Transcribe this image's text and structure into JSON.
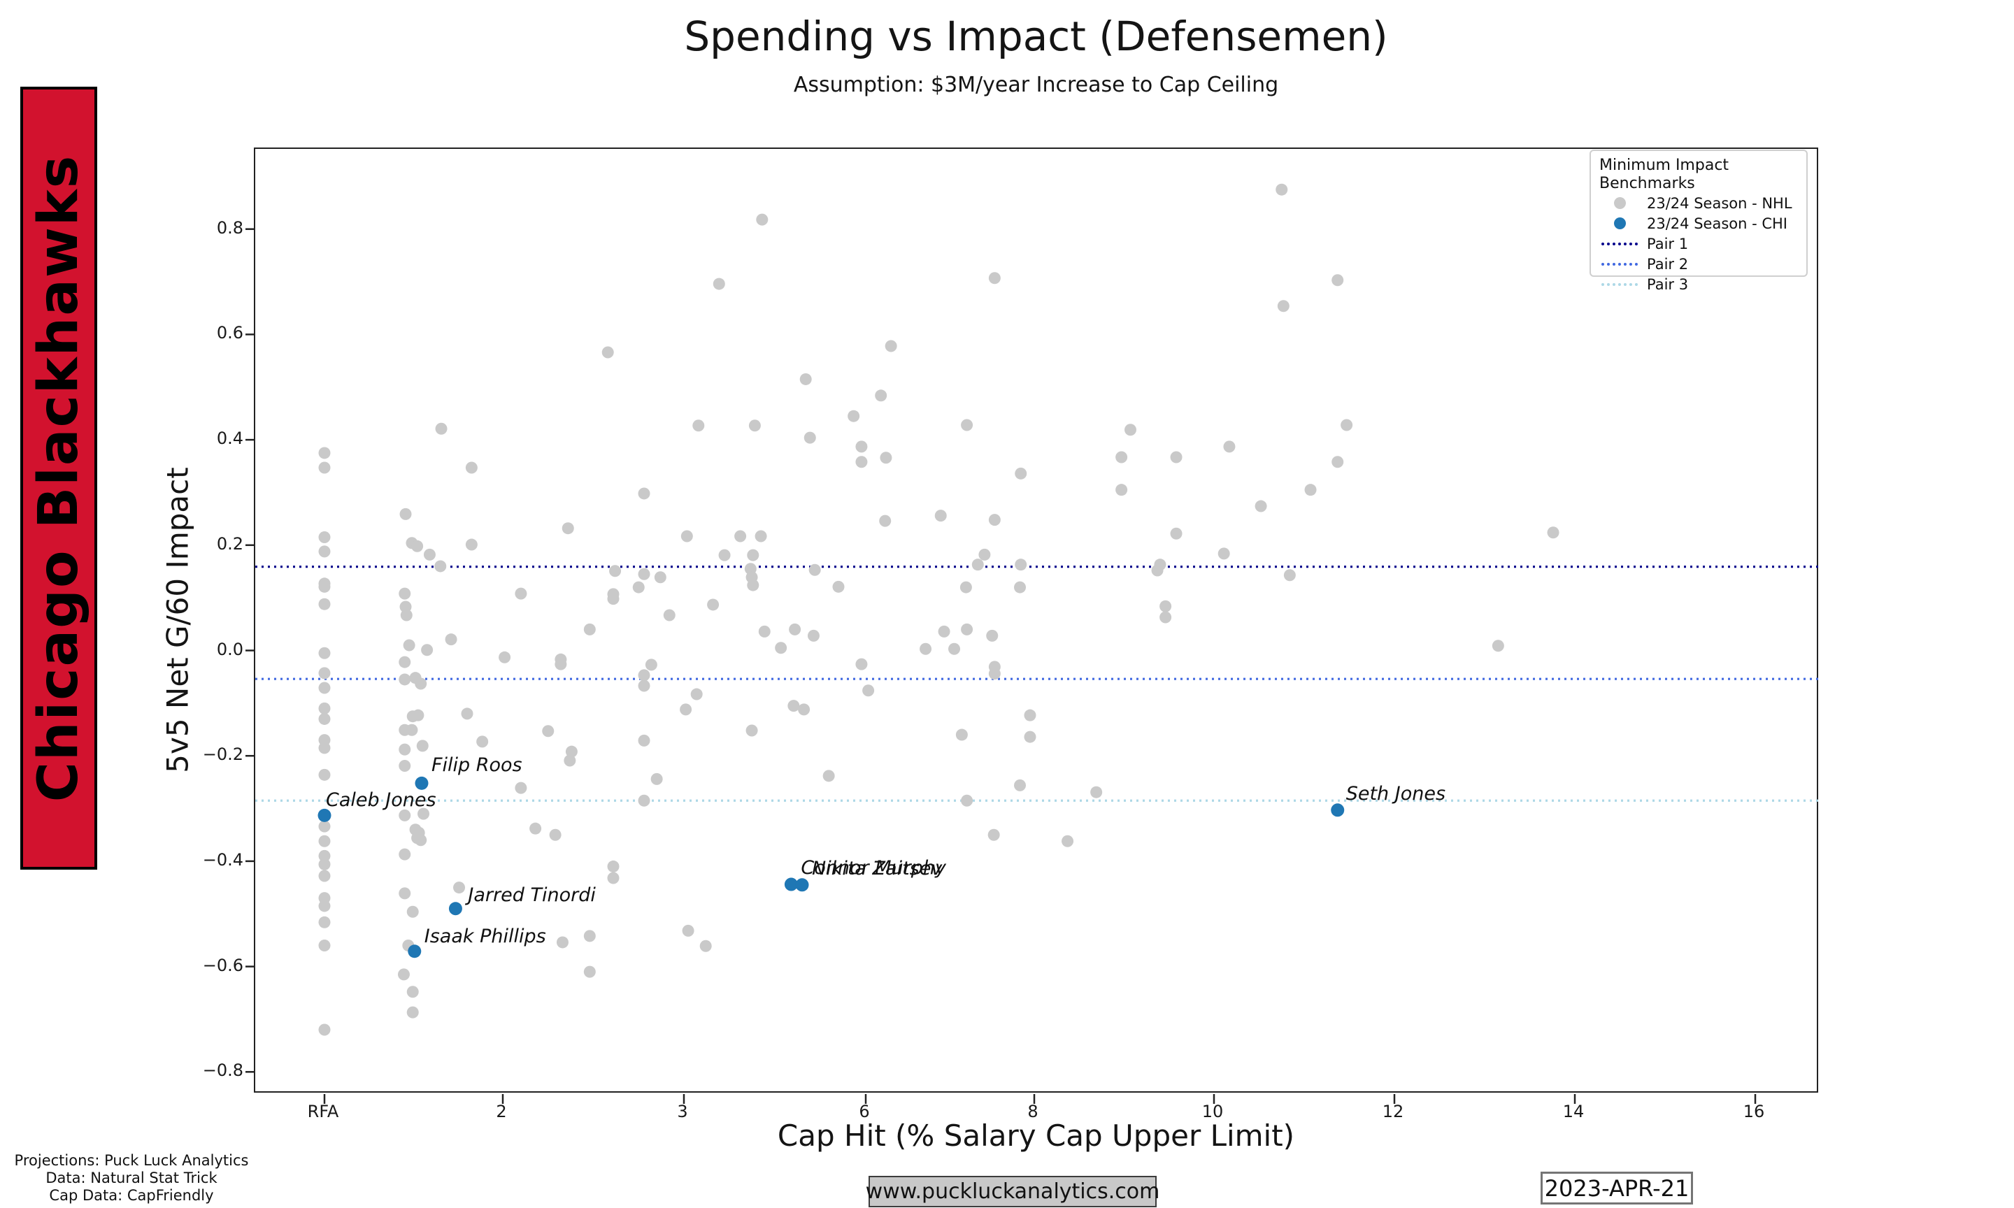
{
  "banner": {
    "team": "Chicago Blackhawks",
    "bg_color": "#D2122E"
  },
  "header": {
    "title": "Spending vs Impact (Defensemen)",
    "subtitle": "Assumption: $3M/year Increase to Cap Ceiling"
  },
  "footer": {
    "credits": [
      "Projections: Puck Luck Analytics",
      "Data: Natural Stat Trick",
      "Cap Data: CapFriendly"
    ],
    "website": "www.puckluckanalytics.com",
    "date": "2023-APR-21"
  },
  "chart_data": {
    "type": "scatter",
    "title": "Spending vs Impact (Defensemen)",
    "subtitle": "Assumption: $3M/year Increase to Cap Ceiling",
    "xlabel": "Cap Hit (% Salary Cap Upper Limit)",
    "ylabel": "5v5 Net G/60 Impact",
    "legend_title": "Minimum Impact Benchmarks",
    "legend_position": "upper right",
    "grid": false,
    "x_tick_labels": [
      "RFA",
      "2",
      "3",
      "6",
      "8",
      "10",
      "12",
      "14",
      "16"
    ],
    "x_tick_values": [
      0,
      2,
      3,
      6,
      8,
      10,
      12,
      14,
      16
    ],
    "y_ticks": [
      0.8,
      0.6,
      0.4,
      0.2,
      0.0,
      -0.2,
      -0.4,
      -0.6,
      -0.8
    ],
    "y_tick_labels": [
      "0.8",
      "0.6",
      "0.4",
      "0.2",
      "0.0",
      "−0.2",
      "−0.4",
      "−0.6",
      "−0.8"
    ],
    "ylim": [
      -0.84,
      0.95
    ],
    "benchmarks": [
      {
        "name": "Pair 1",
        "y": 0.159,
        "color": "#00008B"
      },
      {
        "name": "Pair 2",
        "y": -0.054,
        "color": "#4169E1"
      },
      {
        "name": "Pair 3",
        "y": -0.285,
        "color": "#ADD8E6"
      }
    ],
    "series": [
      {
        "name": "23/24 Season - NHL",
        "color": "#C9C9C9",
        "points": [
          [
            0,
            0.375
          ],
          [
            0,
            0.347
          ],
          [
            0,
            0.215
          ],
          [
            0,
            0.188
          ],
          [
            0,
            0.127
          ],
          [
            0,
            0.121
          ],
          [
            0,
            0.088
          ],
          [
            0,
            -0.005
          ],
          [
            0,
            -0.043
          ],
          [
            0,
            -0.071
          ],
          [
            0,
            -0.11
          ],
          [
            0,
            -0.13
          ],
          [
            0,
            -0.17
          ],
          [
            0,
            -0.185
          ],
          [
            0,
            -0.236
          ],
          [
            0,
            -0.334
          ],
          [
            0,
            -0.362
          ],
          [
            0,
            -0.39
          ],
          [
            0,
            -0.406
          ],
          [
            0,
            -0.428
          ],
          [
            0,
            -0.47
          ],
          [
            0,
            -0.485
          ],
          [
            0,
            -0.516
          ],
          [
            0,
            -0.56
          ],
          [
            0,
            -0.72
          ],
          [
            0.91,
            0.259
          ],
          [
            0.98,
            0.204
          ],
          [
            1.04,
            0.198
          ],
          [
            1.18,
            0.182
          ],
          [
            0.9,
            0.108
          ],
          [
            0.91,
            0.083
          ],
          [
            0.92,
            0.067
          ],
          [
            0.95,
            0.01
          ],
          [
            1.15,
            0.001
          ],
          [
            0.9,
            -0.022
          ],
          [
            0.9,
            -0.055
          ],
          [
            1.02,
            -0.052
          ],
          [
            1.08,
            -0.063
          ],
          [
            1.05,
            -0.123
          ],
          [
            0.99,
            -0.125
          ],
          [
            0.9,
            -0.151
          ],
          [
            0.98,
            -0.151
          ],
          [
            1.1,
            -0.181
          ],
          [
            0.9,
            -0.188
          ],
          [
            0.9,
            -0.219
          ],
          [
            0.9,
            -0.313
          ],
          [
            1.11,
            -0.31
          ],
          [
            1.02,
            -0.34
          ],
          [
            1.06,
            -0.346
          ],
          [
            1.04,
            -0.356
          ],
          [
            1.08,
            -0.36
          ],
          [
            0.9,
            -0.387
          ],
          [
            0.9,
            -0.461
          ],
          [
            0.99,
            -0.496
          ],
          [
            0.94,
            -0.56
          ],
          [
            0.89,
            -0.615
          ],
          [
            0.99,
            -0.648
          ],
          [
            0.99,
            -0.687
          ],
          [
            1.31,
            0.421
          ],
          [
            1.65,
            0.347
          ],
          [
            2.1,
            0.108
          ],
          [
            1.42,
            0.021
          ],
          [
            1.3,
            0.16
          ],
          [
            2.01,
            -0.013
          ],
          [
            1.6,
            -0.12
          ],
          [
            1.77,
            -0.173
          ],
          [
            2.1,
            -0.261
          ],
          [
            2.38,
            -0.192
          ],
          [
            2.36,
            0.232
          ],
          [
            1.65,
            0.201
          ],
          [
            1.51,
            -0.45
          ],
          [
            2.33,
            -0.554
          ],
          [
            2.18,
            -0.338
          ],
          [
            4.29,
            0.818
          ],
          [
            3.58,
            0.696
          ],
          [
            7.53,
            0.707
          ],
          [
            2.58,
            0.566
          ],
          [
            6.3,
            0.578
          ],
          [
            5.01,
            0.515
          ],
          [
            6.18,
            0.484
          ],
          [
            5.8,
            0.445
          ],
          [
            3.24,
            0.427
          ],
          [
            4.17,
            0.427
          ],
          [
            5.08,
            0.404
          ],
          [
            5.93,
            0.387
          ],
          [
            5.93,
            0.358
          ],
          [
            6.24,
            0.366
          ],
          [
            7.2,
            0.428
          ],
          [
            7.84,
            0.336
          ],
          [
            2.78,
            0.298
          ],
          [
            6.23,
            0.246
          ],
          [
            6.89,
            0.256
          ],
          [
            7.53,
            0.248
          ],
          [
            3.05,
            0.217
          ],
          [
            3.93,
            0.217
          ],
          [
            4.27,
            0.217
          ],
          [
            3.67,
            0.181
          ],
          [
            4.14,
            0.181
          ],
          [
            7.41,
            0.182
          ],
          [
            2.62,
            0.151
          ],
          [
            2.78,
            0.145
          ],
          [
            2.87,
            0.139
          ],
          [
            2.75,
            0.12
          ],
          [
            2.61,
            0.107
          ],
          [
            2.61,
            0.098
          ],
          [
            4.1,
            0.155
          ],
          [
            4.12,
            0.139
          ],
          [
            4.14,
            0.124
          ],
          [
            5.16,
            0.153
          ],
          [
            5.55,
            0.121
          ],
          [
            3.48,
            0.087
          ],
          [
            2.92,
            0.067
          ],
          [
            7.33,
            0.163
          ],
          [
            7.84,
            0.163
          ],
          [
            7.19,
            0.12
          ],
          [
            7.83,
            0.12
          ],
          [
            6.93,
            0.036
          ],
          [
            7.2,
            0.04
          ],
          [
            7.5,
            0.028
          ],
          [
            4.33,
            0.036
          ],
          [
            4.83,
            0.04
          ],
          [
            5.14,
            0.028
          ],
          [
            2.48,
            0.04
          ],
          [
            4.6,
            0.005
          ],
          [
            6.71,
            0.003
          ],
          [
            7.05,
            0.003
          ],
          [
            2.32,
            -0.017
          ],
          [
            2.32,
            -0.026
          ],
          [
            2.82,
            -0.027
          ],
          [
            5.93,
            -0.026
          ],
          [
            7.53,
            -0.031
          ],
          [
            7.53,
            -0.044
          ],
          [
            2.78,
            -0.047
          ],
          [
            2.78,
            -0.067
          ],
          [
            3.21,
            -0.083
          ],
          [
            3.03,
            -0.112
          ],
          [
            6.03,
            -0.076
          ],
          [
            4.12,
            -0.152
          ],
          [
            2.78,
            -0.171
          ],
          [
            2.25,
            -0.153
          ],
          [
            2.37,
            -0.209
          ],
          [
            4.81,
            -0.105
          ],
          [
            4.98,
            -0.112
          ],
          [
            7.14,
            -0.16
          ],
          [
            5.39,
            -0.238
          ],
          [
            2.85,
            -0.244
          ],
          [
            2.78,
            -0.285
          ],
          [
            7.2,
            -0.285
          ],
          [
            7.83,
            -0.256
          ],
          [
            2.29,
            -0.35
          ],
          [
            7.52,
            -0.35
          ],
          [
            2.61,
            -0.41
          ],
          [
            2.61,
            -0.432
          ],
          [
            2.48,
            -0.542
          ],
          [
            2.48,
            -0.61
          ],
          [
            3.07,
            -0.532
          ],
          [
            3.36,
            -0.561
          ],
          [
            10.75,
            0.875
          ],
          [
            11.37,
            0.703
          ],
          [
            10.77,
            0.654
          ],
          [
            11.47,
            0.428
          ],
          [
            9.07,
            0.419
          ],
          [
            10.17,
            0.387
          ],
          [
            8.97,
            0.367
          ],
          [
            9.58,
            0.367
          ],
          [
            11.37,
            0.358
          ],
          [
            8.97,
            0.305
          ],
          [
            11.07,
            0.305
          ],
          [
            10.52,
            0.274
          ],
          [
            9.58,
            0.222
          ],
          [
            13.76,
            0.224
          ],
          [
            10.11,
            0.184
          ],
          [
            9.4,
            0.163
          ],
          [
            9.37,
            0.152
          ],
          [
            10.84,
            0.143
          ],
          [
            9.46,
            0.084
          ],
          [
            9.46,
            0.063
          ],
          [
            13.15,
            0.009
          ],
          [
            7.95,
            -0.123
          ],
          [
            7.95,
            -0.164
          ],
          [
            8.69,
            -0.269
          ],
          [
            8.37,
            -0.362
          ]
        ]
      },
      {
        "name": "23/24 Season - CHI",
        "color": "#1F77B4",
        "labeled_points": [
          {
            "player": "Caleb Jones",
            "x": 0,
            "y": -0.313,
            "dx": 4,
            "dy": -4
          },
          {
            "player": "Filip Roos",
            "x": 1.09,
            "y": -0.252,
            "dx": 16,
            "dy": -8
          },
          {
            "player": "Jarred Tinordi",
            "x": 1.47,
            "y": -0.49,
            "dx": 20,
            "dy": -2
          },
          {
            "player": "Isaak Phillips",
            "x": 1.01,
            "y": -0.571,
            "dx": 16,
            "dy": -4
          },
          {
            "player": "Connor Murphy",
            "x": 4.77,
            "y": -0.444,
            "dx": 16,
            "dy": -6
          },
          {
            "player": "Nikita Zaitsev",
            "x": 4.95,
            "y": -0.445,
            "dx": 16,
            "dy": -6
          },
          {
            "player": "Seth Jones",
            "x": 11.37,
            "y": -0.303,
            "dx": 14,
            "dy": -6
          }
        ]
      }
    ]
  }
}
